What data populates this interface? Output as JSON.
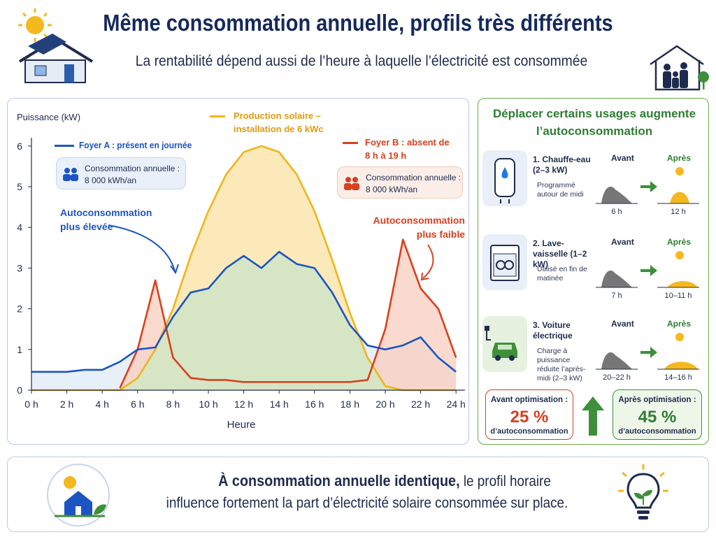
{
  "header": {
    "title": "Même consommation annuelle, profils très différents",
    "subtitle": "La rentabilité dépend aussi de l’heure à laquelle l’électricité est consommée"
  },
  "chart_data": {
    "type": "line",
    "y_label": "Puissance (kW)",
    "x_label": "Heure",
    "x": [
      0,
      1,
      2,
      3,
      4,
      5,
      6,
      7,
      8,
      9,
      10,
      11,
      12,
      13,
      14,
      15,
      16,
      17,
      18,
      19,
      20,
      21,
      22,
      23,
      24
    ],
    "series": [
      {
        "name": "Production solaire – installation de 6 kWc",
        "color": "#f0b51b",
        "fill": "#fbe2a2",
        "values": [
          0,
          0,
          0,
          0,
          0,
          0,
          0.3,
          1.0,
          2.0,
          3.3,
          4.4,
          5.3,
          5.85,
          6.0,
          5.85,
          5.3,
          4.4,
          3.2,
          1.9,
          0.8,
          0.1,
          0,
          0,
          0,
          0
        ]
      },
      {
        "name": "Foyer A : présent en journée",
        "color": "#1c55c2",
        "fill": "#dfe9f6",
        "values": [
          0.45,
          0.45,
          0.45,
          0.5,
          0.5,
          0.7,
          1.0,
          1.05,
          1.8,
          2.4,
          2.5,
          3.0,
          3.3,
          3.0,
          3.4,
          3.1,
          3.0,
          2.4,
          1.6,
          1.1,
          1.0,
          1.1,
          1.3,
          0.8,
          0.45
        ]
      },
      {
        "name": "Foyer B : absent de 8 h à 19 h",
        "color": "#d8401e",
        "fill": "#f8cdbd",
        "values": [
          null,
          null,
          null,
          null,
          null,
          0.05,
          1.0,
          2.7,
          0.8,
          0.3,
          0.25,
          0.25,
          0.2,
          0.2,
          0.2,
          0.2,
          0.2,
          0.2,
          0.2,
          0.25,
          1.5,
          3.7,
          2.5,
          2.0,
          0.8
        ]
      }
    ],
    "overlap_color": "#d3e6c6",
    "xlim": [
      0,
      24.5
    ],
    "xticks": [
      {
        "value": 0,
        "label": "0 h"
      },
      {
        "value": 2,
        "label": "2 h"
      },
      {
        "value": 4,
        "label": "4 h"
      },
      {
        "value": 6,
        "label": "6 h"
      },
      {
        "value": 8,
        "label": "8 h"
      },
      {
        "value": 10,
        "label": "10 h"
      },
      {
        "value": 12,
        "label": "12 h"
      },
      {
        "value": 14,
        "label": "14 h"
      },
      {
        "value": 16,
        "label": "16 h"
      },
      {
        "value": 18,
        "label": "18 h"
      },
      {
        "value": 20,
        "label": "20 h"
      },
      {
        "value": 22,
        "label": "22 h"
      },
      {
        "value": 24,
        "label": "24 h"
      }
    ],
    "ylim": [
      0,
      6.2
    ],
    "yticks": [
      0,
      1,
      2,
      3,
      4,
      5,
      6
    ],
    "grid": false,
    "info_label": "Consommation annuelle :",
    "info_value": "8 000 kWh/an",
    "annotation_a": "Autoconsommation plus élevée",
    "annotation_b": "Autoconsommation plus faible"
  },
  "panel": {
    "title": "Déplacer certains usages augmente l’autoconsommation",
    "before_label": "Avant",
    "after_label": "Après",
    "items": [
      {
        "title": "1. Chauffe-eau (2–3 kW)",
        "desc": "Programmé autour de midi",
        "before": "6 h",
        "after": "12 h"
      },
      {
        "title": "2. Lave-vaisselle (1–2 kW)",
        "desc": "Utilisé en fin de matinée",
        "before": "7 h",
        "after": "10–11 h"
      },
      {
        "title": "3. Voiture électrique",
        "desc": "Charge à puissance réduite l’après-midi (2–3 kW)",
        "before": "20–22 h",
        "after": "14–16 h"
      }
    ],
    "before_box": {
      "label": "Avant optimisation :",
      "value": "25 %",
      "caption": "d’autoconsommation"
    },
    "after_box": {
      "label": "Après optimisation :",
      "value": "45 %",
      "caption": "d’autoconsommation"
    }
  },
  "footer": {
    "bold": "À consommation annuelle identique,",
    "text_1": "le profil horaire",
    "text_2": "influence fortement la part d’électricité solaire consommée sur place."
  }
}
